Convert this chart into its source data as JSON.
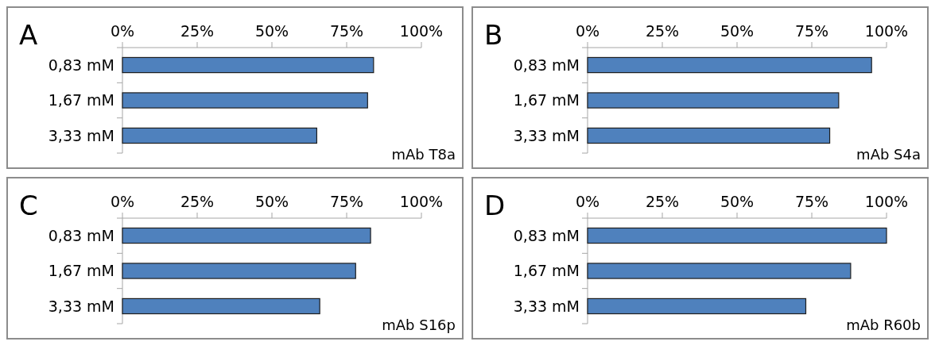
{
  "chart_data": [
    {
      "type": "bar",
      "orientation": "horizontal",
      "title": "A",
      "categories": [
        "0,83 mM",
        "1,67 mM",
        "3,33 mM"
      ],
      "values": [
        84,
        82,
        65
      ],
      "color": "#4f81bd",
      "xlim": [
        0,
        100
      ],
      "xticks": [
        {
          "value": 0,
          "label": "0%"
        },
        {
          "value": 25,
          "label": "25%"
        },
        {
          "value": 50,
          "label": "50%"
        },
        {
          "value": 75,
          "label": "75%"
        },
        {
          "value": 100,
          "label": "100%"
        }
      ],
      "annotations": [
        "mAb T8a"
      ]
    },
    {
      "type": "bar",
      "orientation": "horizontal",
      "title": "B",
      "categories": [
        "0,83 mM",
        "1,67 mM",
        "3,33 mM"
      ],
      "values": [
        95,
        84,
        81
      ],
      "color": "#4f81bd",
      "xlim": [
        0,
        100
      ],
      "xticks": [
        {
          "value": 0,
          "label": "0%"
        },
        {
          "value": 25,
          "label": "25%"
        },
        {
          "value": 50,
          "label": "50%"
        },
        {
          "value": 75,
          "label": "75%"
        },
        {
          "value": 100,
          "label": "100%"
        }
      ],
      "annotations": [
        "mAb S4a"
      ]
    },
    {
      "type": "bar",
      "orientation": "horizontal",
      "title": "C",
      "categories": [
        "0,83 mM",
        "1,67 mM",
        "3,33 mM"
      ],
      "values": [
        83,
        78,
        66
      ],
      "color": "#4f81bd",
      "xlim": [
        0,
        100
      ],
      "xticks": [
        {
          "value": 0,
          "label": "0%"
        },
        {
          "value": 25,
          "label": "25%"
        },
        {
          "value": 50,
          "label": "50%"
        },
        {
          "value": 75,
          "label": "75%"
        },
        {
          "value": 100,
          "label": "100%"
        }
      ],
      "annotations": [
        "mAb S16p"
      ]
    },
    {
      "type": "bar",
      "orientation": "horizontal",
      "title": "D",
      "categories": [
        "0,83 mM",
        "1,67 mM",
        "3,33 mM"
      ],
      "values": [
        100,
        88,
        73
      ],
      "color": "#4f81bd",
      "xlim": [
        0,
        100
      ],
      "xticks": [
        {
          "value": 0,
          "label": "0%"
        },
        {
          "value": 25,
          "label": "25%"
        },
        {
          "value": 50,
          "label": "50%"
        },
        {
          "value": 75,
          "label": "75%"
        },
        {
          "value": 100,
          "label": "100%"
        }
      ],
      "annotations": [
        "mAb R60b"
      ]
    }
  ]
}
